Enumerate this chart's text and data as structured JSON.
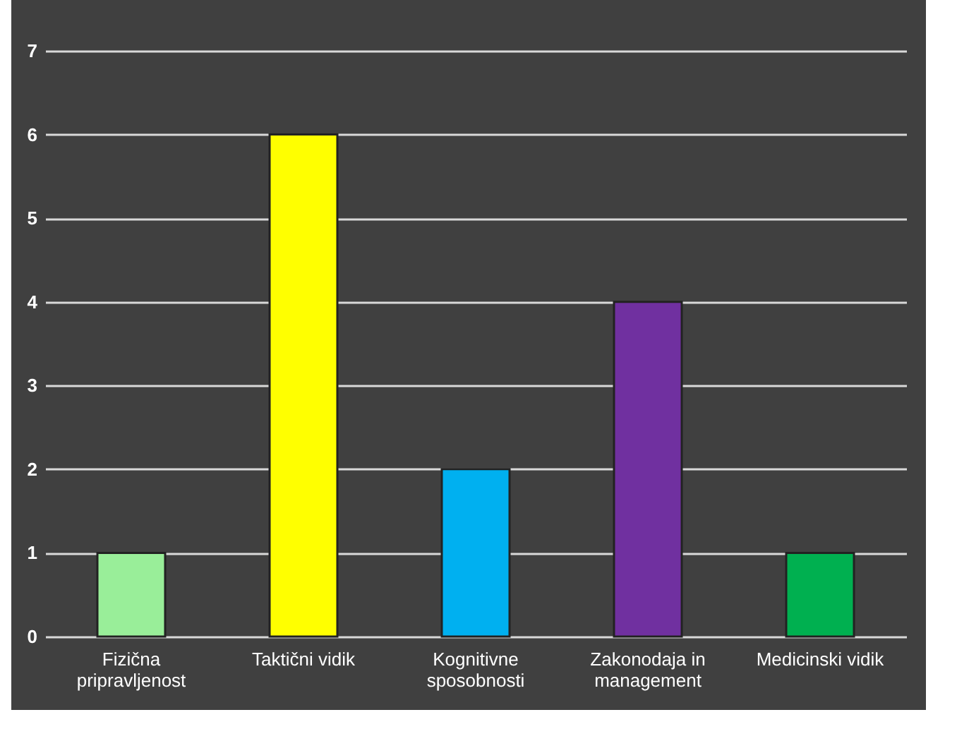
{
  "chart_data": {
    "type": "bar",
    "categories": [
      "Fizična pripravljenost",
      "Taktični vidik",
      "Kognitivne sposobnosti",
      "Zakonodaja in management",
      "Medicinski vidik"
    ],
    "values": [
      1,
      6,
      2,
      4,
      1
    ],
    "colors": [
      "#99ee99",
      "#ffff00",
      "#00b0f0",
      "#7030a0",
      "#00b050"
    ],
    "ylim": [
      0,
      7
    ],
    "yticks": [
      0,
      1,
      2,
      3,
      4,
      5,
      6,
      7
    ],
    "grid": "y"
  }
}
